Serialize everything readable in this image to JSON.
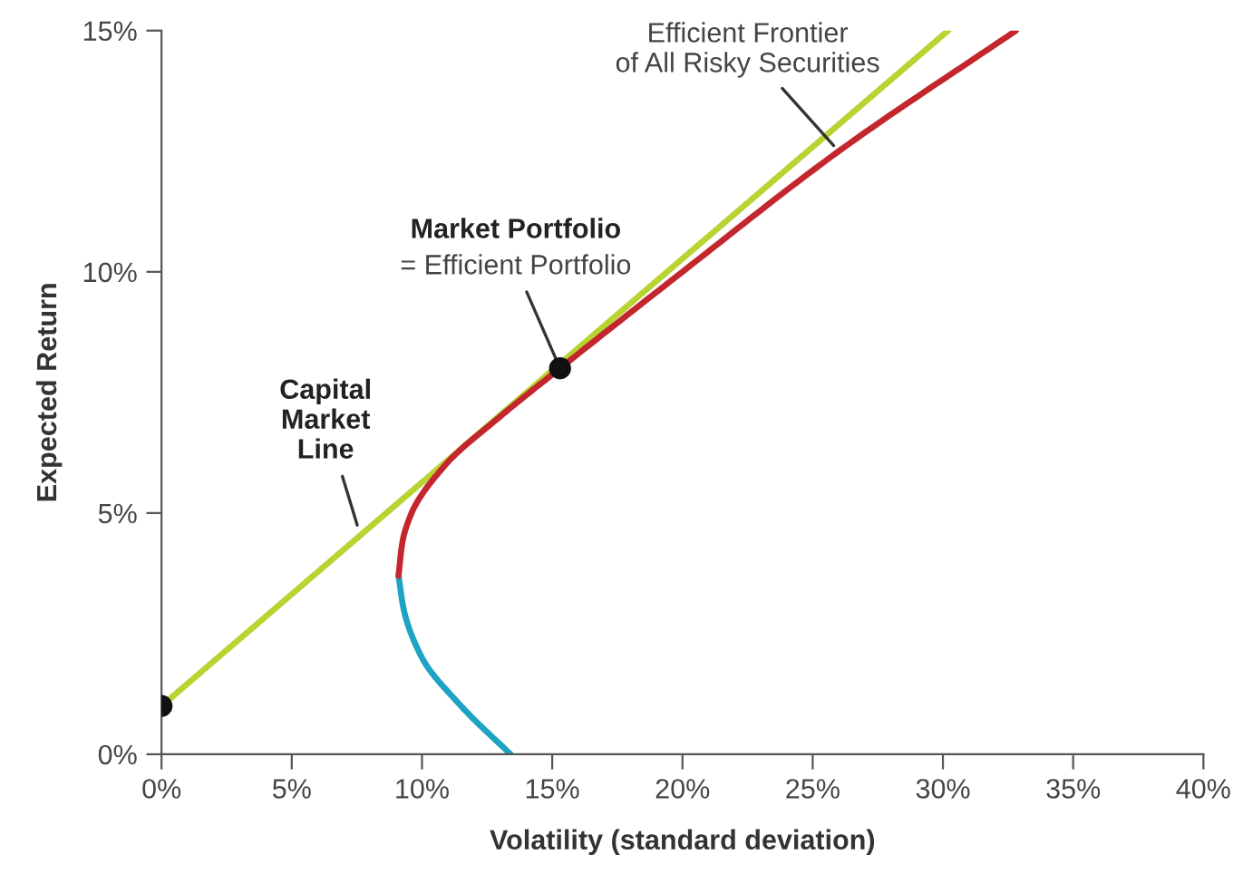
{
  "chart_data": {
    "type": "line",
    "xlabel": "Volatility (standard deviation)",
    "ylabel": "Expected Return",
    "xlim": [
      0,
      40
    ],
    "ylim": [
      0,
      15
    ],
    "xticks": [
      {
        "value": 0,
        "label": "0%"
      },
      {
        "value": 5,
        "label": "5%"
      },
      {
        "value": 10,
        "label": "10%"
      },
      {
        "value": 15,
        "label": "15%"
      },
      {
        "value": 20,
        "label": "20%"
      },
      {
        "value": 25,
        "label": "25%"
      },
      {
        "value": 30,
        "label": "30%"
      },
      {
        "value": 35,
        "label": "35%"
      },
      {
        "value": 40,
        "label": "40%"
      }
    ],
    "yticks": [
      {
        "value": 0,
        "label": "0%"
      },
      {
        "value": 5,
        "label": "5%"
      },
      {
        "value": 10,
        "label": "10%"
      },
      {
        "value": 15,
        "label": "15%"
      }
    ],
    "grid": false,
    "legend": false,
    "marker": "none",
    "line_style": "solid",
    "series": [
      {
        "color": "#b8d432",
        "x": [
          0,
          30.2
        ],
        "values": [
          1,
          15
        ]
      },
      {
        "color": "#1ea3c4",
        "x": [
          13.4,
          11.5,
          10.0,
          9.3,
          9.1
        ],
        "values": [
          0,
          1,
          2,
          3,
          3.7
        ]
      },
      {
        "color": "#c4262e",
        "x": [
          9.1,
          9.25,
          9.6,
          10.9,
          13.0,
          15.3,
          20.0,
          26.0,
          32.8
        ],
        "values": [
          3.7,
          4.4,
          5,
          6,
          7,
          8,
          10,
          12.5,
          15
        ]
      },
      {
        "type": "scatter",
        "color": "#111111",
        "marker": "circle",
        "x": [
          0,
          15.3
        ],
        "values": [
          1,
          8
        ]
      }
    ],
    "annotations": [
      {
        "text": "Efficient Frontier\nof All Risky Securities",
        "x": 26.0,
        "y": 12.5
      },
      "Market Portfolio",
      {
        "text": "= Efficient Portfolio",
        "x": 15.3,
        "y": 8.0
      },
      {
        "text": "Capital\nMarket\nLine",
        "x": 7.6,
        "y": 4.6
      }
    ]
  }
}
